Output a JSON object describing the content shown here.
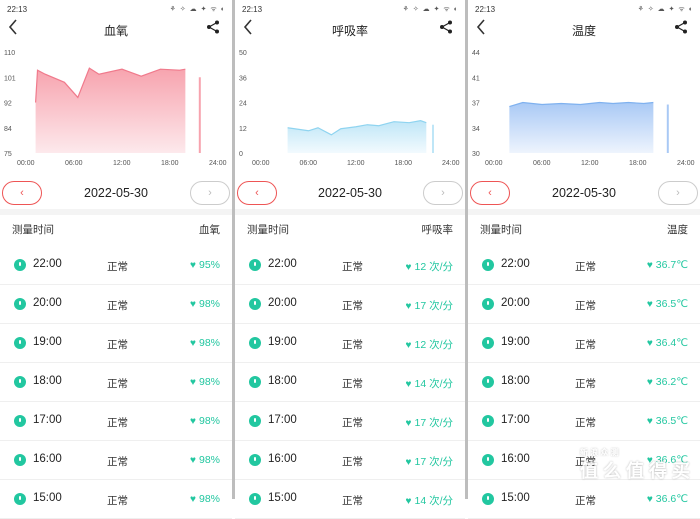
{
  "status": {
    "time": "22:13",
    "icons": "⚘ ✧ ☁ ✦ ᯤ ◐"
  },
  "panels": [
    {
      "title": "血氧",
      "accent": "#f07a8c",
      "fill_top": "#f7a3ae",
      "fill_bot": "#fde9ec",
      "date": "2022-05-30",
      "prev": "‹",
      "next": "›",
      "col_time": "测量时间",
      "col_value": "血氧",
      "chart": {
        "y_ticks": [
          "110",
          "101",
          "92",
          "84",
          "75"
        ],
        "y_min": 75,
        "y_max": 110,
        "x_ticks": [
          "00:00",
          "06:00",
          "12:00",
          "18:00",
          "24:00"
        ]
      },
      "rows": [
        {
          "time": "22:00",
          "status": "正常",
          "value": "95%"
        },
        {
          "time": "20:00",
          "status": "正常",
          "value": "98%"
        },
        {
          "time": "19:00",
          "status": "正常",
          "value": "98%"
        },
        {
          "time": "18:00",
          "status": "正常",
          "value": "98%"
        },
        {
          "time": "17:00",
          "status": "正常",
          "value": "98%"
        },
        {
          "time": "16:00",
          "status": "正常",
          "value": "98%"
        },
        {
          "time": "15:00",
          "status": "正常",
          "value": "98%"
        }
      ]
    },
    {
      "title": "呼吸率",
      "accent": "#8fd4f0",
      "fill_top": "#bfe6f7",
      "fill_bot": "#f2fafe",
      "date": "2022-05-30",
      "prev": "‹",
      "next": "›",
      "col_time": "测量时间",
      "col_value": "呼吸率",
      "chart": {
        "y_ticks": [
          "50",
          "36",
          "24",
          "12",
          "0"
        ],
        "y_min": 0,
        "y_max": 50,
        "x_ticks": [
          "00:00",
          "06:00",
          "12:00",
          "18:00",
          "24:00"
        ]
      },
      "rows": [
        {
          "time": "22:00",
          "status": "正常",
          "value": "12 次/分"
        },
        {
          "time": "20:00",
          "status": "正常",
          "value": "17 次/分"
        },
        {
          "time": "19:00",
          "status": "正常",
          "value": "12 次/分"
        },
        {
          "time": "18:00",
          "status": "正常",
          "value": "14 次/分"
        },
        {
          "time": "17:00",
          "status": "正常",
          "value": "17 次/分"
        },
        {
          "time": "16:00",
          "status": "正常",
          "value": "17 次/分"
        },
        {
          "time": "15:00",
          "status": "正常",
          "value": "14 次/分"
        }
      ]
    },
    {
      "title": "温度",
      "accent": "#7fb1ef",
      "fill_top": "#a9c9f5",
      "fill_bot": "#eef4fd",
      "date": "2022-05-30",
      "prev": "‹",
      "next": "›",
      "col_time": "测量时间",
      "col_value": "温度",
      "chart": {
        "y_ticks": [
          "44",
          "41",
          "37",
          "34",
          "30"
        ],
        "y_min": 30,
        "y_max": 44,
        "x_ticks": [
          "00:00",
          "06:00",
          "12:00",
          "18:00",
          "24:00"
        ]
      },
      "rows": [
        {
          "time": "22:00",
          "status": "正常",
          "value": "36.7℃"
        },
        {
          "time": "20:00",
          "status": "正常",
          "value": "36.5℃"
        },
        {
          "time": "19:00",
          "status": "正常",
          "value": "36.4℃"
        },
        {
          "time": "18:00",
          "status": "正常",
          "value": "36.2℃"
        },
        {
          "time": "17:00",
          "status": "正常",
          "value": "36.5℃"
        },
        {
          "time": "16:00",
          "status": "正常",
          "value": "36.6℃"
        },
        {
          "time": "15:00",
          "status": "正常",
          "value": "36.6℃"
        }
      ]
    }
  ],
  "watermark": {
    "main": "值 么 值 得 买",
    "sub": "新 浪 众 测"
  }
}
